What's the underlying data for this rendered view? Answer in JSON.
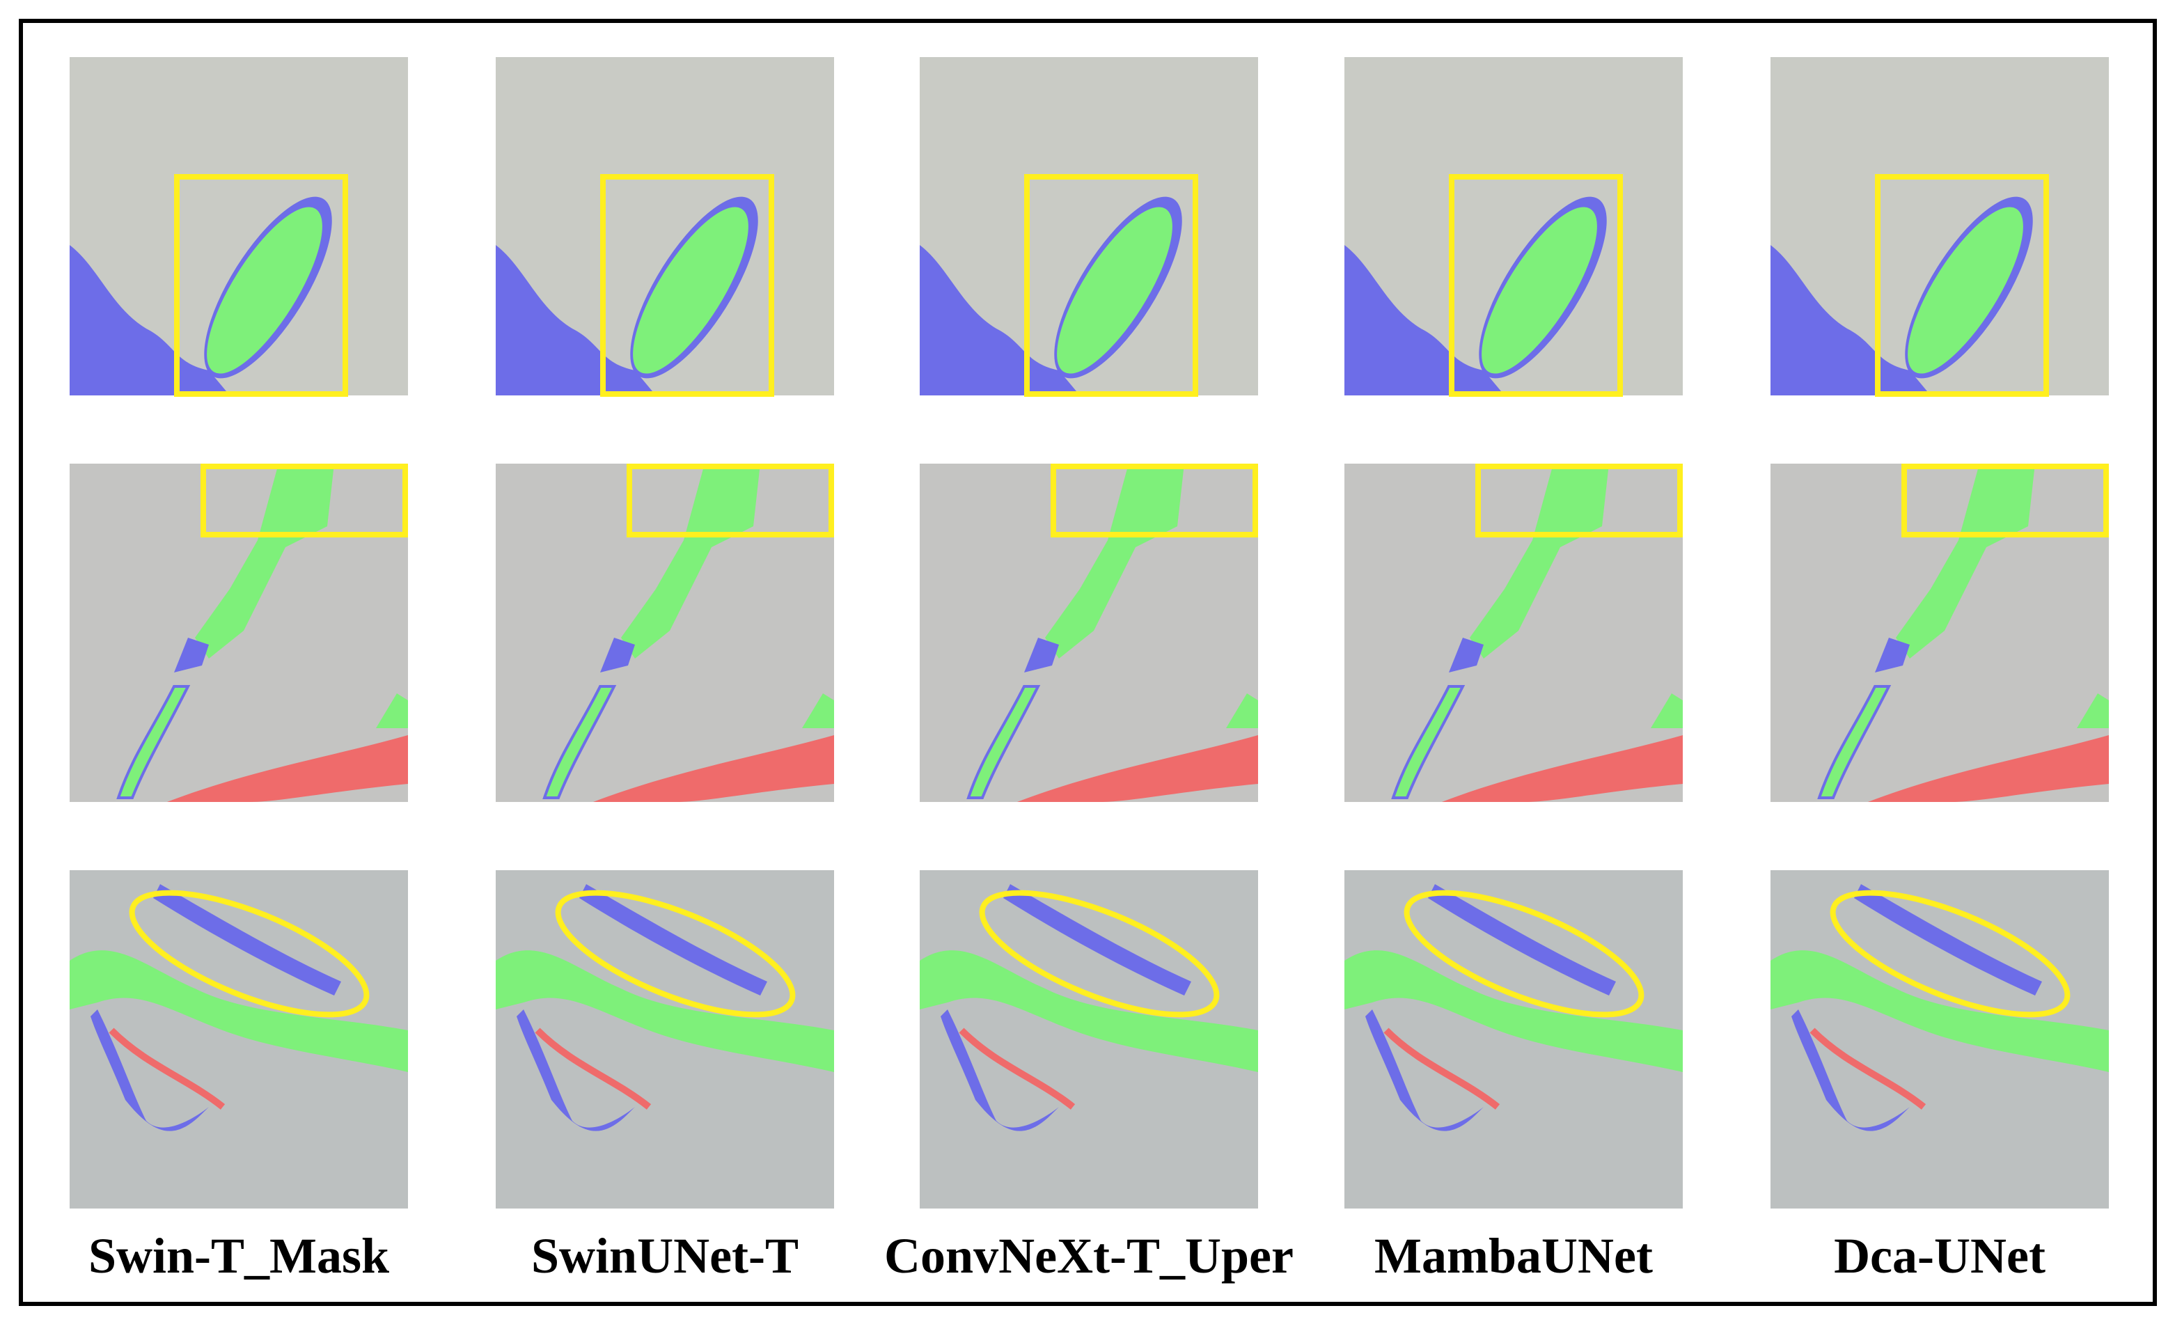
{
  "figure": {
    "column_labels": [
      "Swin-T_Mask",
      "SwinUNet-T",
      "ConvNeXt-T_Uper",
      "MambaUNet",
      "Dca-UNet"
    ]
  }
}
